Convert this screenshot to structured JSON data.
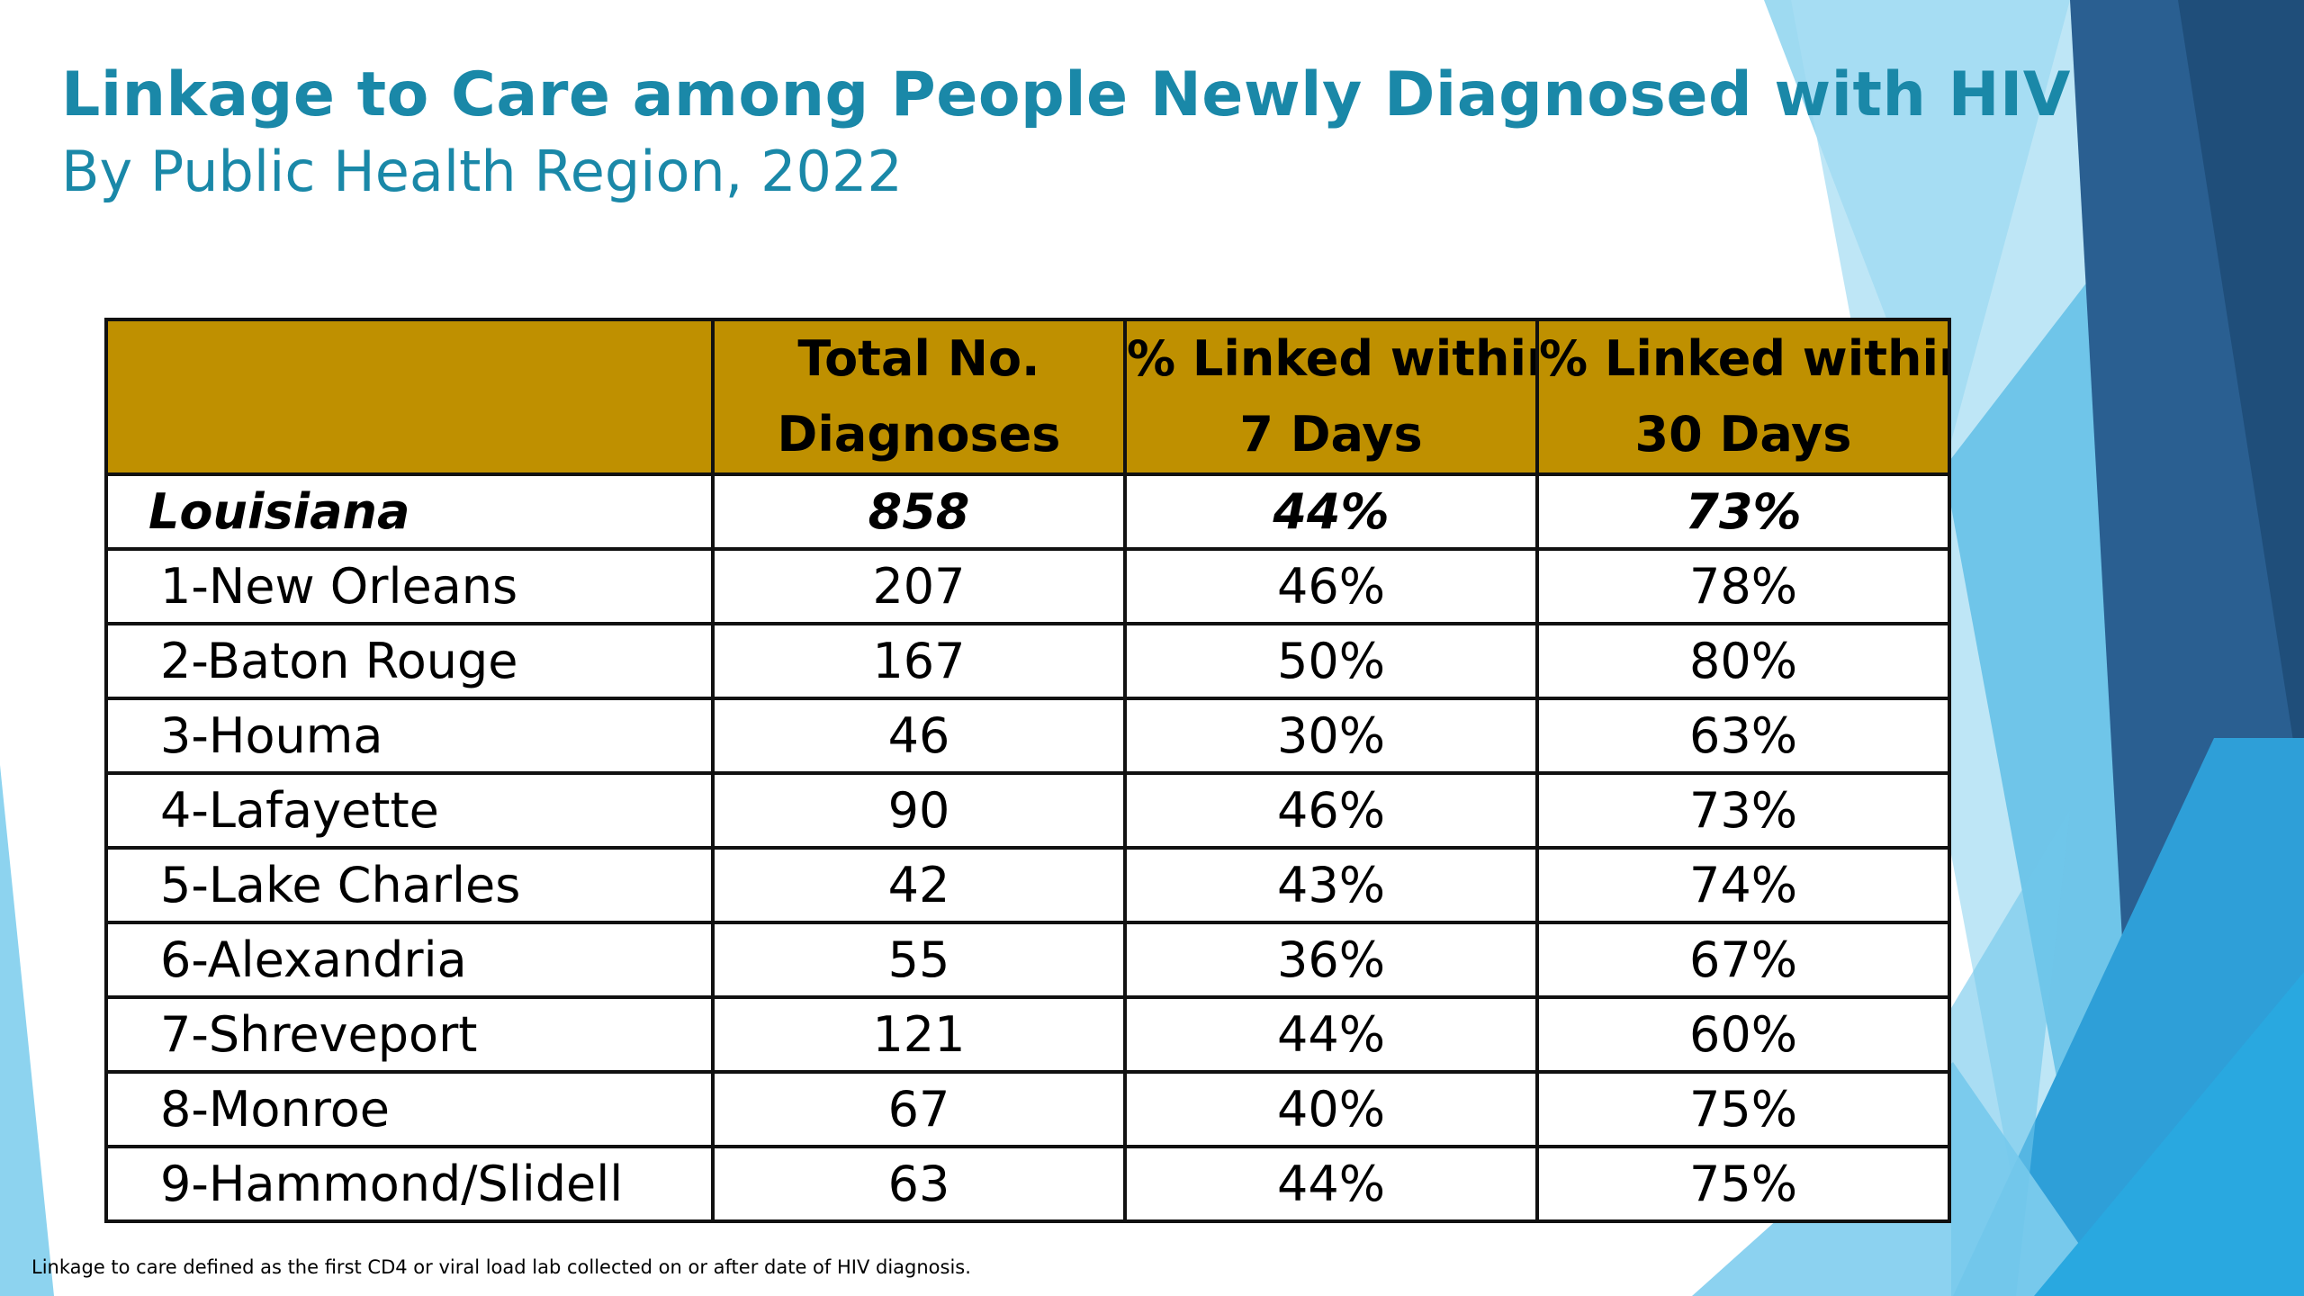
{
  "slide": {
    "title": "Linkage to Care among People Newly Diagnosed with HIV",
    "subtitle": "By Public Health Region, 2022",
    "footnote": "Linkage to care defined as the first CD4 or viral load lab collected on or after date of HIV diagnosis.",
    "colors": {
      "title": "#1a88a8",
      "header_fill": "#bf9000",
      "decor_blue_dark": "#2a5f91",
      "decor_blue_mid": "#2e9fd8",
      "decor_blue_light": "#8dd3ef"
    }
  },
  "table": {
    "headers": {
      "region": "",
      "total_line1": "Total No.",
      "total_line2": "Diagnoses",
      "d7_line1": "% Linked within",
      "d7_line2": "7 Days",
      "d30_line1": "% Linked within",
      "d30_line2": "30 Days"
    },
    "state": {
      "region": "Louisiana",
      "total": "858",
      "d7": "44%",
      "d30": "73%"
    },
    "rows": [
      {
        "region": "1-New Orleans",
        "total": "207",
        "d7": "46%",
        "d30": "78%"
      },
      {
        "region": "2-Baton Rouge",
        "total": "167",
        "d7": "50%",
        "d30": "80%"
      },
      {
        "region": "3-Houma",
        "total": "46",
        "d7": "30%",
        "d30": "63%"
      },
      {
        "region": "4-Lafayette",
        "total": "90",
        "d7": "46%",
        "d30": "73%"
      },
      {
        "region": "5-Lake Charles",
        "total": "42",
        "d7": "43%",
        "d30": "74%"
      },
      {
        "region": "6-Alexandria",
        "total": "55",
        "d7": "36%",
        "d30": "67%"
      },
      {
        "region": "7-Shreveport",
        "total": "121",
        "d7": "44%",
        "d30": "60%"
      },
      {
        "region": "8-Monroe",
        "total": "67",
        "d7": "40%",
        "d30": "75%"
      },
      {
        "region": "9-Hammond/Slidell",
        "total": "63",
        "d7": "44%",
        "d30": "75%"
      }
    ]
  }
}
